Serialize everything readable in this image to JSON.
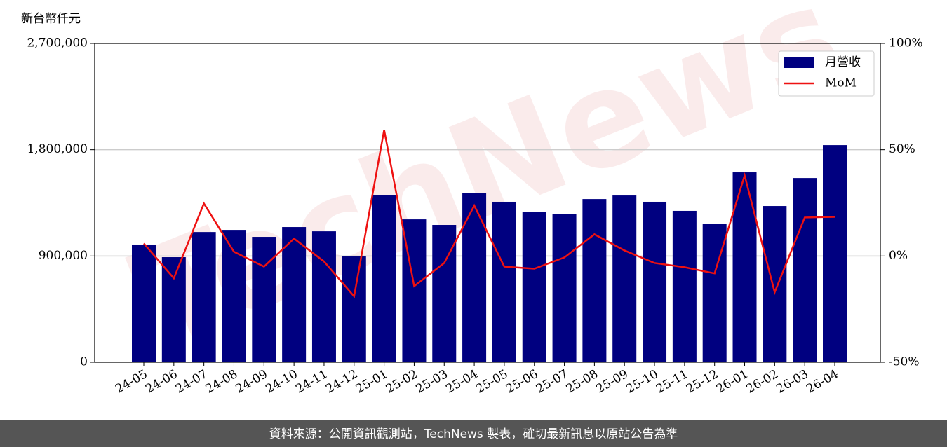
{
  "chart_data": {
    "type": "bar-line",
    "y_unit_label": "新台幣仟元",
    "categories": [
      "24-05",
      "24-06",
      "24-07",
      "24-08",
      "24-09",
      "24-10",
      "24-11",
      "24-12",
      "25-01",
      "25-02",
      "25-03",
      "25-04",
      "25-05",
      "25-06",
      "25-07",
      "25-08",
      "25-09",
      "25-10",
      "25-11",
      "25-12",
      "26-01",
      "26-02",
      "26-03",
      "26-04"
    ],
    "series": [
      {
        "name": "月營收",
        "type": "bar",
        "color": "#000080",
        "values": [
          997000,
          890000,
          1103000,
          1121000,
          1062000,
          1145000,
          1109000,
          896000,
          1418000,
          1210000,
          1163000,
          1436000,
          1359000,
          1270000,
          1258000,
          1382000,
          1412000,
          1359000,
          1282000,
          1169000,
          1608000,
          1323000,
          1560000,
          1839000
        ]
      },
      {
        "name": "MoM",
        "type": "line",
        "axis": "y2",
        "color": "#ee1111",
        "values": [
          5.9,
          -10.5,
          24.7,
          2,
          -5,
          8.2,
          -2.6,
          -19,
          59.3,
          -14.2,
          -3.3,
          23.7,
          -5,
          -6,
          -0.7,
          10.2,
          2.6,
          -3.3,
          -5.3,
          -8.2,
          37.9,
          -17.1,
          18.1,
          18.4
        ]
      }
    ],
    "ylim": [
      0,
      2700000
    ],
    "yticks": [
      0,
      {
        "value": 900000,
        "label": "900,000"
      },
      {
        "value": 1800000,
        "label": "1,800,000"
      },
      {
        "value": 2700000,
        "label": "2,700,000"
      }
    ],
    "y2lim": [
      -50,
      100
    ],
    "y2ticks": [
      {
        "value": -50,
        "label": "-50%"
      },
      {
        "value": 0,
        "label": "0%"
      },
      {
        "value": 50,
        "label": "50%"
      },
      {
        "value": 100,
        "label": "100%"
      }
    ],
    "grid": true,
    "legend": "upper right",
    "watermark": "TechNews",
    "footer": "資料來源：公開資訊觀測站，TechNews 製表，確切最新訊息以原站公告為準"
  }
}
